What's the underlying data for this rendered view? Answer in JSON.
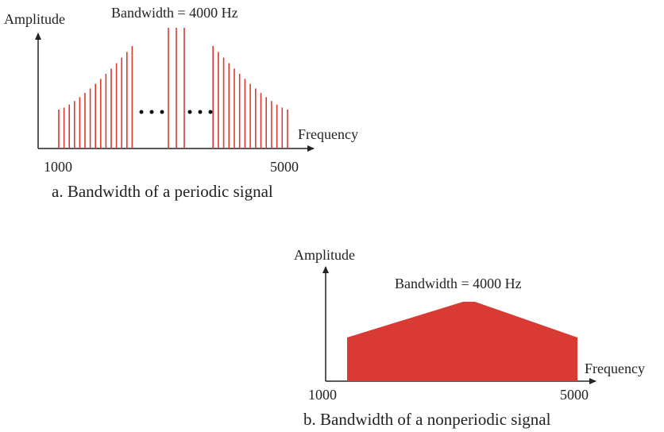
{
  "top": {
    "y_label": "Amplitude",
    "bandwidth": "Bandwidth =  4000 Hz",
    "x_label": "Frequency",
    "low": "1000",
    "high": "5000",
    "caption": "a. Bandwidth of a periodic signal"
  },
  "bottom": {
    "y_label": "Amplitude",
    "bandwidth": "Bandwidth =  4000 Hz",
    "x_label": "Frequency",
    "low": "1000",
    "high": "5000",
    "caption": "b. Bandwidth of a nonperiodic signal"
  }
}
